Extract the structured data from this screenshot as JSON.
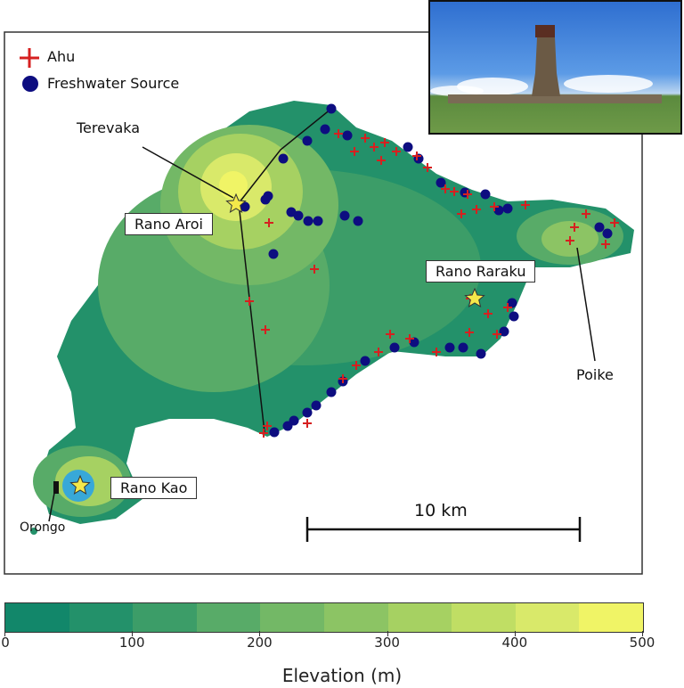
{
  "legend": {
    "items": [
      {
        "label": "Ahu",
        "symbol": "red-cross",
        "color": "#d62020"
      },
      {
        "label": "Freshwater Source",
        "symbol": "navy-dot",
        "color": "#0d0d80"
      }
    ]
  },
  "places": {
    "terevaka": "Terevaka",
    "rano_aroi": "Rano Aroi",
    "rano_raraku": "Rano Raraku",
    "poike": "Poike",
    "rano_kao": "Rano Kao",
    "orongo": "Orongo"
  },
  "scale_bar": {
    "label": "10 km"
  },
  "colorbar": {
    "title": "Elevation (m)",
    "ticks": [
      "0",
      "100",
      "200",
      "300",
      "400",
      "500"
    ],
    "range": [
      0,
      500
    ],
    "step": 50,
    "colors": [
      "#12876a",
      "#23916a",
      "#3c9d68",
      "#58ab68",
      "#73b866",
      "#8cc464",
      "#a6d162",
      "#c0de64",
      "#d9e96a",
      "#f0f466"
    ]
  },
  "photo": {
    "subject": "moai-on-ahu-photo"
  }
}
